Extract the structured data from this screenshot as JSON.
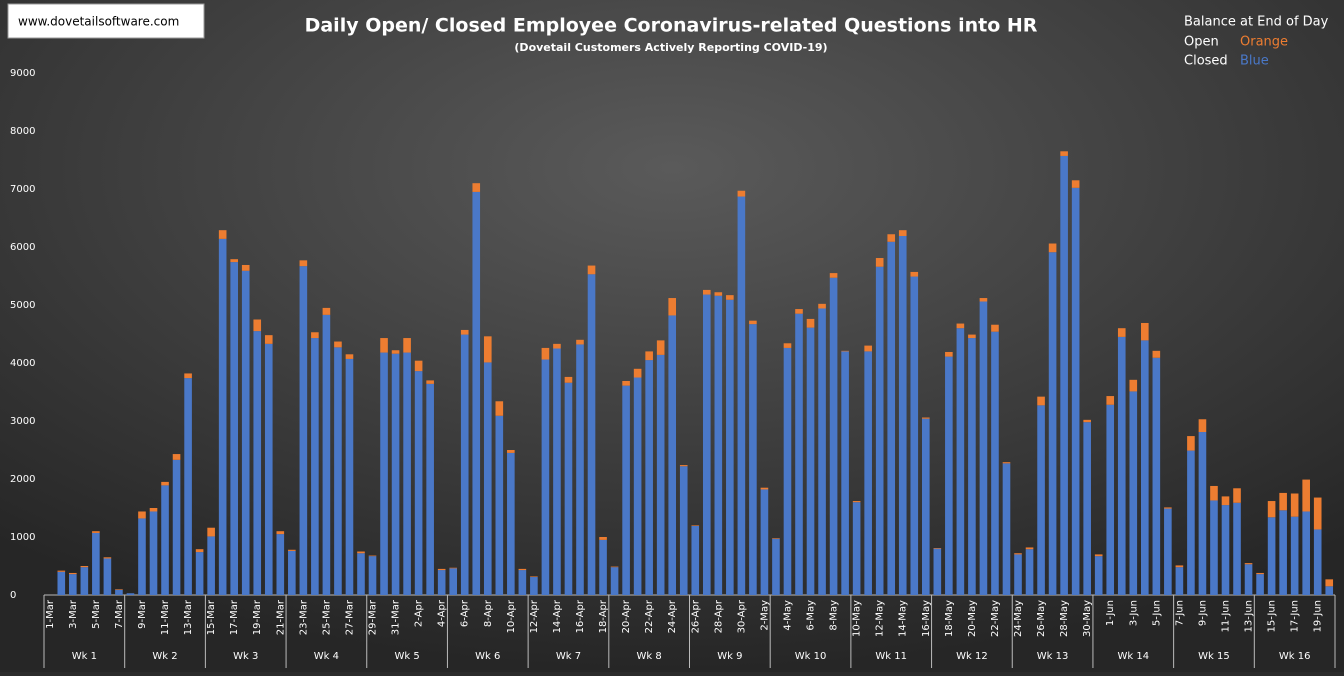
{
  "source": "www.dovetailsoftware.com",
  "chart_data": {
    "type": "stacked-bar",
    "title": "Daily Open/ Closed Employee Coronavirus-related Questions into HR",
    "subtitle": "(Dovetail Customers Actively Reporting COVID-19)",
    "legend_title": "Balance at End of Day",
    "legend_color_labels": [
      "Orange",
      "Blue"
    ],
    "legend_position": "top-right",
    "ylim": [
      0,
      9000
    ],
    "yticks": [
      0,
      1000,
      2000,
      3000,
      4000,
      5000,
      6000,
      7000,
      8000,
      9000
    ],
    "weeks": [
      "Wk 1",
      "Wk 2",
      "Wk 3",
      "Wk 4",
      "Wk 5",
      "Wk 6",
      "Wk 7",
      "Wk 8",
      "Wk 9",
      "Wk 10",
      "Wk 11",
      "Wk 12",
      "Wk 13",
      "Wk 14",
      "Wk 15",
      "Wk 16"
    ],
    "categories": [
      "1-Mar",
      null,
      "3-Mar",
      null,
      "5-Mar",
      null,
      "7-Mar",
      null,
      "9-Mar",
      null,
      "11-Mar",
      null,
      "13-Mar",
      null,
      "15-Mar",
      null,
      "17-Mar",
      null,
      "19-Mar",
      null,
      "21-Mar",
      null,
      "23-Mar",
      null,
      "25-Mar",
      null,
      "27-Mar",
      null,
      "29-Mar",
      null,
      "31-Mar",
      null,
      "2-Apr",
      null,
      "4-Apr",
      null,
      "6-Apr",
      null,
      "8-Apr",
      null,
      "10-Apr",
      null,
      "12-Apr",
      null,
      "14-Apr",
      null,
      "16-Apr",
      null,
      "18-Apr",
      null,
      "20-Apr",
      null,
      "22-Apr",
      null,
      "24-Apr",
      null,
      "26-Apr",
      null,
      "28-Apr",
      null,
      "30-Apr",
      null,
      "2-May",
      null,
      "4-May",
      null,
      "6-May",
      null,
      "8-May",
      null,
      "10-May",
      null,
      "12-May",
      null,
      "14-May",
      null,
      "16-May",
      null,
      "18-May",
      null,
      "20-May",
      null,
      "22-May",
      null,
      "24-May",
      null,
      "26-May",
      null,
      "28-May",
      null,
      "30-May",
      null,
      "1-Jun",
      null,
      "3-Jun",
      null,
      "5-Jun",
      null,
      "7-Jun",
      null,
      "9-Jun",
      null,
      "11-Jun",
      null,
      "13-Jun",
      null,
      "15-Jun",
      null,
      "17-Jun",
      null,
      "19-Jun",
      null
    ],
    "series": [
      {
        "name": "Closed",
        "color": "#4a78c8",
        "values": [
          0,
          400,
          360,
          480,
          1070,
          630,
          90,
          30,
          1320,
          1440,
          1890,
          2330,
          3740,
          740,
          1010,
          6140,
          5740,
          5590,
          4550,
          4330,
          1050,
          760,
          5670,
          4430,
          4830,
          4270,
          4070,
          720,
          670,
          4180,
          4160,
          4180,
          3860,
          3640,
          430,
          460,
          4490,
          6950,
          4010,
          3090,
          2450,
          430,
          310,
          4060,
          4250,
          3660,
          4320,
          5530,
          950,
          480,
          3610,
          3750,
          4050,
          4140,
          4820,
          2220,
          1190,
          5180,
          5160,
          5090,
          6870,
          4670,
          1820,
          970,
          4260,
          4850,
          4610,
          4940,
          5470,
          4200,
          1600,
          4200,
          5660,
          6090,
          6190,
          5490,
          3040,
          800,
          4110,
          4600,
          4430,
          5060,
          4540,
          2270,
          700,
          790,
          3270,
          5910,
          7570,
          7020,
          2980,
          670,
          3280,
          4450,
          3510,
          4390,
          4090,
          1490,
          480,
          2490,
          2810,
          1630,
          1550,
          1590,
          530,
          360,
          1340,
          1460,
          1350,
          1440,
          1130,
          150
        ]
      },
      {
        "name": "Open",
        "color": "#ed7d31",
        "values": [
          0,
          20,
          20,
          20,
          30,
          20,
          10,
          0,
          120,
          60,
          60,
          100,
          80,
          50,
          150,
          150,
          50,
          100,
          200,
          150,
          50,
          20,
          100,
          100,
          120,
          100,
          80,
          30,
          10,
          250,
          60,
          250,
          180,
          60,
          20,
          10,
          80,
          150,
          450,
          250,
          50,
          20,
          10,
          200,
          80,
          100,
          80,
          150,
          50,
          10,
          80,
          150,
          150,
          250,
          300,
          20,
          10,
          80,
          60,
          80,
          100,
          60,
          30,
          10,
          80,
          80,
          150,
          80,
          80,
          10,
          20,
          100,
          150,
          130,
          100,
          80,
          20,
          10,
          80,
          80,
          60,
          60,
          120,
          20,
          20,
          30,
          150,
          150,
          80,
          130,
          40,
          30,
          150,
          150,
          200,
          300,
          120,
          20,
          30,
          250,
          220,
          250,
          150,
          250,
          20,
          20,
          280,
          300,
          400,
          550,
          550,
          120
        ]
      }
    ]
  }
}
